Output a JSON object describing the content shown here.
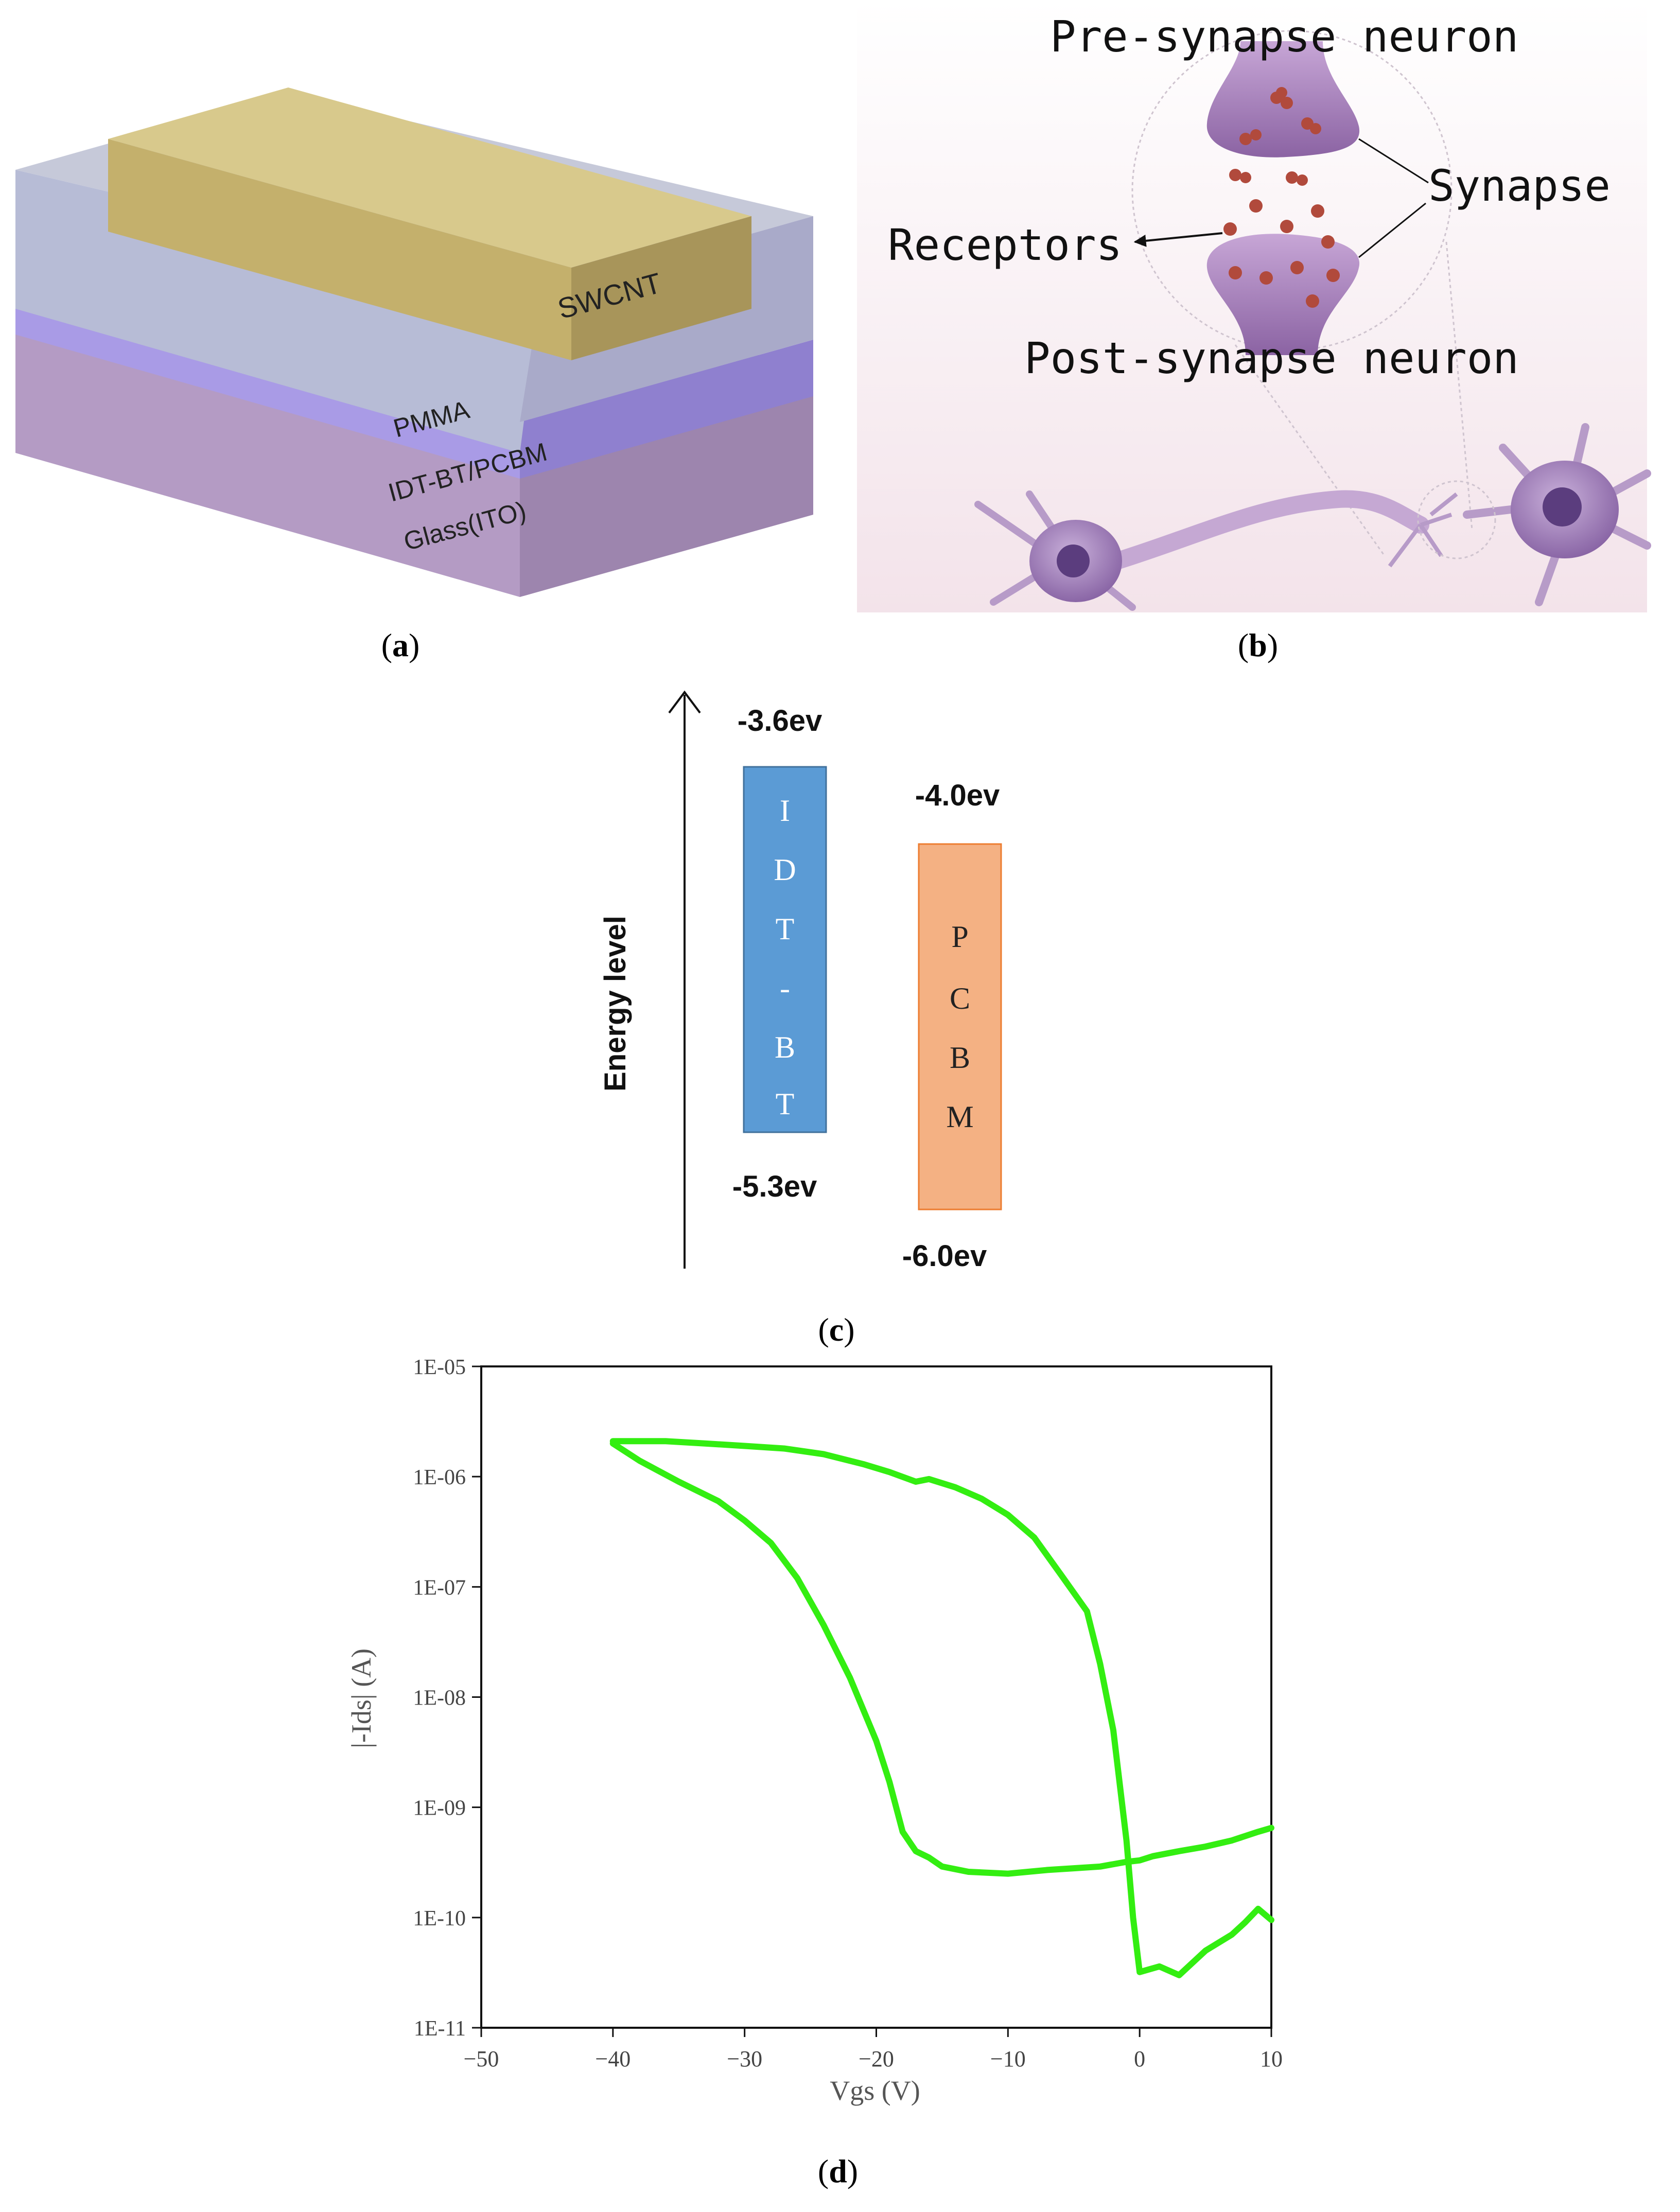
{
  "panel_a": {
    "caption_label": "a",
    "layers": {
      "top": "SWCNT",
      "dielectric": "PMMA",
      "active": "IDT-BT/PCBM",
      "substrate": "Glass(ITO)"
    }
  },
  "panel_b": {
    "caption_label": "b",
    "labels": {
      "pre": "Pre-synapse neuron",
      "synapse": "Synapse",
      "receptors": "Receptors",
      "post": "Post-synapse neuron"
    }
  },
  "panel_c": {
    "caption_label": "c",
    "axis_label": "Energy level",
    "materials": [
      {
        "name": "IDT-BT",
        "letters": [
          "I",
          "D",
          "T",
          "-",
          "B",
          "T"
        ],
        "lumo": "-3.6ev",
        "homo": "-5.3ev",
        "color": "#5b9bd5"
      },
      {
        "name": "PCBM",
        "letters": [
          "P",
          "C",
          "B",
          "M"
        ],
        "lumo": "-4.0ev",
        "homo": "-6.0ev",
        "color": "#f4b183"
      }
    ]
  },
  "panel_d": {
    "caption_label": "d",
    "line_color": "#33ee11"
  },
  "chart_data": {
    "type": "line",
    "xlabel": "Vgs (V)",
    "ylabel": "|-Ids| (A)",
    "xlim": [
      -50,
      10
    ],
    "ylim": [
      1e-11,
      1e-05
    ],
    "yscale": "log",
    "x_ticks": [
      "−50",
      "−40",
      "−30",
      "−20",
      "−10",
      "0",
      "10"
    ],
    "y_ticks": [
      "1E-11",
      "1E-10",
      "1E-09",
      "1E-08",
      "1E-07",
      "1E-06",
      "1E-05"
    ],
    "grid": false,
    "series": [
      {
        "values_note": "forward and reverse sweep (hysteresis loop)",
        "x": [
          -40,
          -38,
          -35,
          -32,
          -30,
          -28,
          -26,
          -24,
          -22,
          -20,
          -19,
          -18,
          -17,
          -16,
          -15,
          -13,
          -10,
          -7,
          -5,
          -3,
          -1,
          0,
          1,
          3,
          5,
          7,
          9,
          10
        ],
        "y": [
          2e-06,
          1.4e-06,
          9e-07,
          6e-07,
          4e-07,
          2.5e-07,
          1.2e-07,
          4.5e-08,
          1.5e-08,
          4e-09,
          1.7e-09,
          6e-10,
          4e-10,
          3.5e-10,
          2.9e-10,
          2.6e-10,
          2.5e-10,
          2.7e-10,
          2.8e-10,
          2.9e-10,
          3.2e-10,
          3.3e-10,
          3.6e-10,
          4e-10,
          4.4e-10,
          5e-10,
          6e-10,
          6.5e-10
        ]
      },
      {
        "x": [
          10,
          9,
          8,
          7,
          5,
          3,
          1.5,
          0,
          -0.5,
          -1,
          -2,
          -3,
          -4,
          -6,
          -8,
          -10,
          -12,
          -14,
          -16,
          -17,
          -19,
          -21,
          -24,
          -27,
          -30,
          -33,
          -36,
          -39,
          -40
        ],
        "y": [
          9.5e-11,
          1.2e-10,
          9e-11,
          7e-11,
          5e-11,
          3e-11,
          3.6e-11,
          3.2e-11,
          1e-10,
          5e-10,
          5e-09,
          2e-08,
          6e-08,
          1.3e-07,
          2.8e-07,
          4.5e-07,
          6.3e-07,
          8e-07,
          9.5e-07,
          9e-07,
          1.1e-06,
          1.3e-06,
          1.6e-06,
          1.8e-06,
          1.9e-06,
          2e-06,
          2.1e-06,
          2.1e-06,
          2.1e-06
        ]
      }
    ]
  }
}
